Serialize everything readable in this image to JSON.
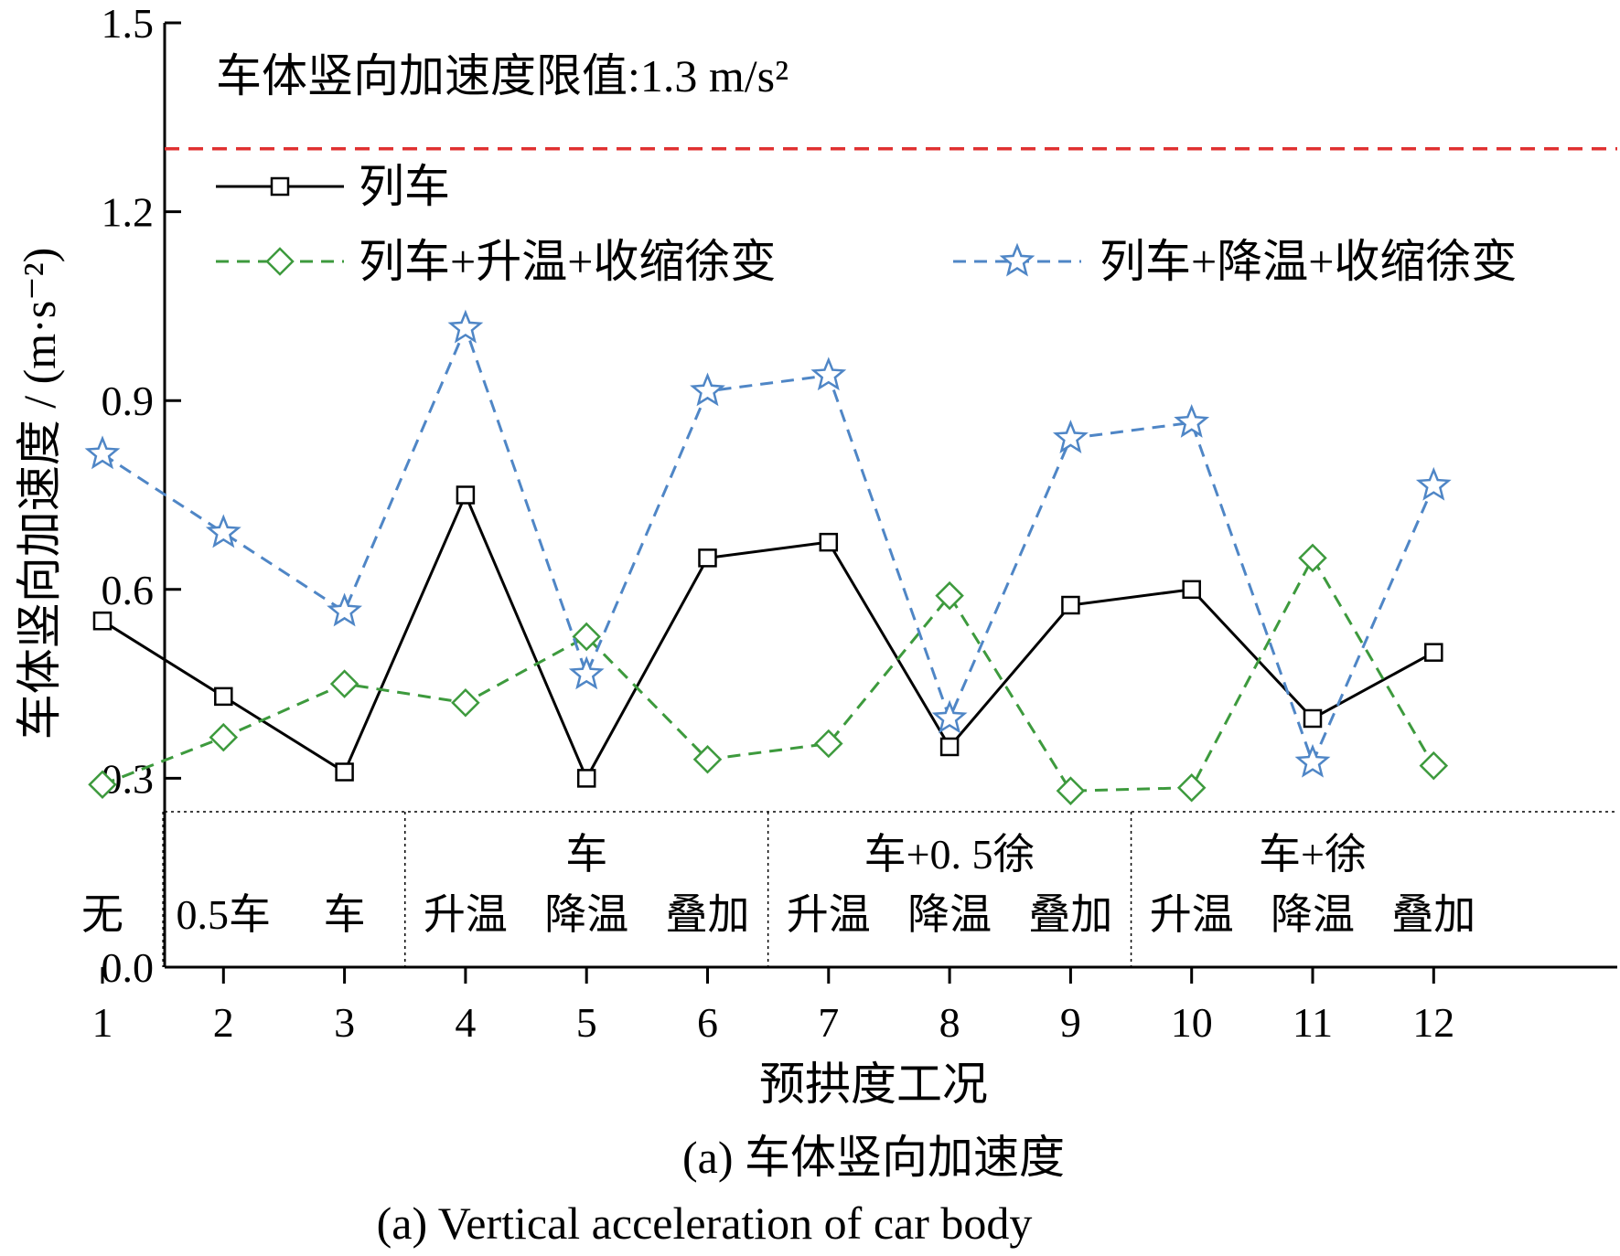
{
  "chart_data": {
    "type": "line",
    "title": "",
    "xlabel": "预拱度工况",
    "ylabel": "车体竖向加速度 / (m·s⁻²)",
    "ylim": [
      0,
      1.5
    ],
    "yticks": [
      "0.0",
      "0.3",
      "0.6",
      "0.9",
      "1.2",
      "1.5"
    ],
    "x": [
      1,
      2,
      3,
      4,
      5,
      6,
      7,
      8,
      9,
      10,
      11,
      12
    ],
    "xtick_labels": [
      "1",
      "2",
      "3",
      "4",
      "5",
      "6",
      "7",
      "8",
      "9",
      "10",
      "11",
      "12"
    ],
    "limit_line": {
      "value": 1.3,
      "label": "车体竖向加速度限值:1.3  m/s²",
      "color": "#e03131"
    },
    "series": [
      {
        "name": "列车",
        "marker": "square",
        "style": "solid",
        "color": "#000000",
        "values": [
          0.55,
          0.43,
          0.31,
          0.75,
          0.3,
          0.65,
          0.675,
          0.35,
          0.575,
          0.6,
          0.395,
          0.5
        ]
      },
      {
        "name": "列车+升温+收缩徐变",
        "marker": "diamond",
        "style": "dashed",
        "color": "#3d9a3d",
        "values": [
          0.29,
          0.365,
          0.45,
          0.42,
          0.525,
          0.33,
          0.355,
          0.59,
          0.28,
          0.285,
          0.65,
          0.32
        ]
      },
      {
        "name": "列车+降温+收缩徐变",
        "marker": "star",
        "style": "dashed",
        "color": "#4f86c6",
        "values": [
          0.815,
          0.69,
          0.565,
          1.015,
          0.465,
          0.915,
          0.94,
          0.395,
          0.84,
          0.865,
          0.325,
          0.765
        ]
      }
    ],
    "case_groups": [
      {
        "top": "",
        "bottom": [
          "无"
        ]
      },
      {
        "top": "",
        "bottom": [
          "0.5车",
          "车"
        ]
      },
      {
        "top": "车",
        "bottom": [
          "升温",
          "降温",
          "叠加"
        ]
      },
      {
        "top": "车+0. 5徐",
        "bottom": [
          "升温",
          "降温",
          "叠加"
        ]
      },
      {
        "top": "车+徐",
        "bottom": [
          "升温",
          "降温",
          "叠加"
        ]
      }
    ],
    "legend_placement": "top-left",
    "grid": false,
    "caption_cn": "(a) 车体竖向加速度",
    "caption_en": "(a) Vertical acceleration of car body"
  }
}
